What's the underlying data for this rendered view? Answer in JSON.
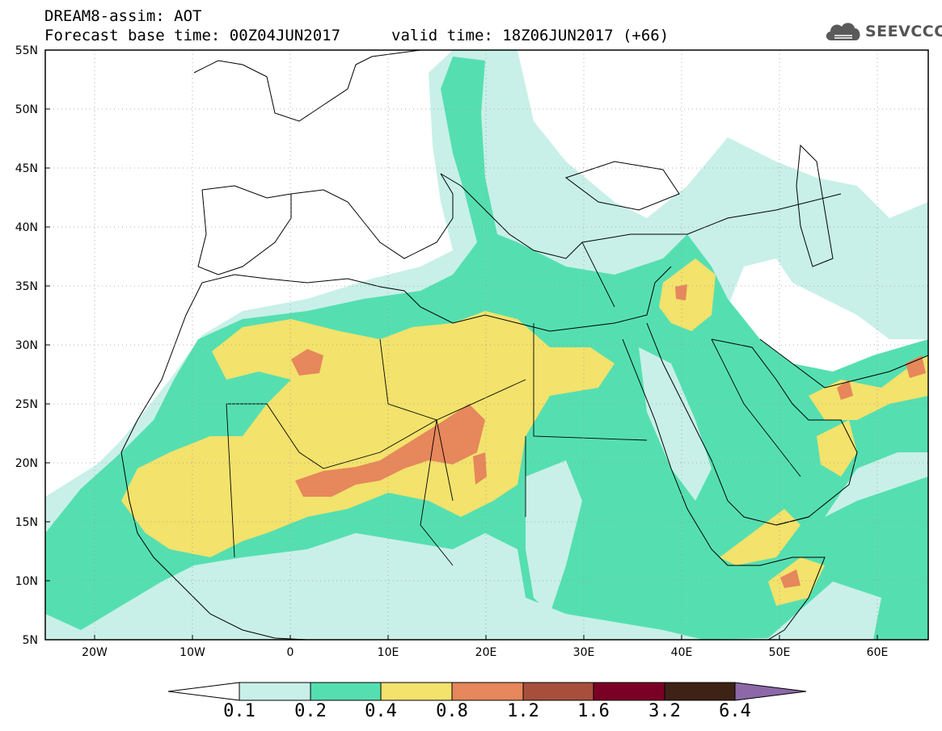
{
  "header": {
    "title": "DREAM8-assim: AOT",
    "base_time": "Forecast base time: 00Z04JUN2017",
    "valid_time": "valid time: 18Z06JUN2017 (+66)",
    "logo_text": "SEEVCCC"
  },
  "map": {
    "lon_range": [
      -25,
      65
    ],
    "lat_range": [
      5,
      55
    ],
    "x_ticks": [
      "20W",
      "10W",
      "0",
      "10E",
      "20E",
      "30E",
      "40E",
      "50E",
      "60E"
    ],
    "y_ticks": [
      "55N",
      "50N",
      "45N",
      "40N",
      "35N",
      "30N",
      "25N",
      "20N",
      "15N",
      "10N",
      "5N"
    ],
    "grid": "dotted"
  },
  "colorbar": {
    "labels": [
      "0.1",
      "0.2",
      "0.4",
      "0.8",
      "1.2",
      "1.6",
      "3.2",
      "6.4"
    ],
    "colors": [
      "#ffffff",
      "#c8f0e8",
      "#55dfb0",
      "#f3e26c",
      "#e6875c",
      "#a84f3c",
      "#7b0025",
      "#3e2216",
      "#8c68a8"
    ]
  }
}
